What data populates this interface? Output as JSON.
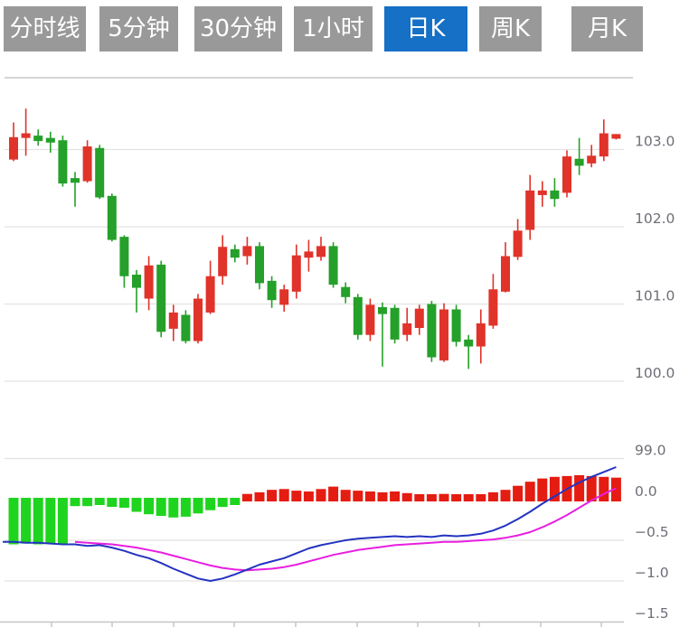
{
  "tabs": {
    "items": [
      {
        "id": "tab-minute-line",
        "label": "分时线",
        "active": false
      },
      {
        "id": "tab-5min",
        "label": "5分钟",
        "active": false
      },
      {
        "id": "tab-30min",
        "label": "30分钟",
        "active": false
      },
      {
        "id": "tab-1hour",
        "label": "1小时",
        "active": false
      },
      {
        "id": "tab-daily-k",
        "label": "日K",
        "active": true
      },
      {
        "id": "tab-weekly-k",
        "label": "周K",
        "active": false
      },
      {
        "id": "tab-monthly-k",
        "label": "月K",
        "active": false
      }
    ],
    "active_bg": "#1570c6",
    "inactive_bg": "#999999"
  },
  "chart_data": {
    "type": "candlestick+macd",
    "title": "",
    "legend_position": "none",
    "grid": true,
    "price_axis": {
      "side": "right",
      "ticks": [
        103.0,
        102.0,
        101.0,
        100.0,
        99.0
      ],
      "labels": [
        "103.0",
        "102.0",
        "101.0",
        "100.0",
        "99.0"
      ],
      "range_shown": [
        99.0,
        103.85
      ]
    },
    "macd_axis": {
      "side": "right",
      "ticks": [
        0.0,
        -0.5,
        -1.0,
        -1.5
      ],
      "labels": [
        "0.0",
        "−0.5",
        "−1.0",
        "−1.5"
      ]
    },
    "candles": [
      {
        "o": 102.87,
        "h": 103.35,
        "l": 102.85,
        "c": 103.16
      },
      {
        "o": 103.15,
        "h": 103.53,
        "l": 102.92,
        "c": 103.21
      },
      {
        "o": 103.18,
        "h": 103.26,
        "l": 103.05,
        "c": 103.11
      },
      {
        "o": 103.15,
        "h": 103.23,
        "l": 102.96,
        "c": 103.09
      },
      {
        "o": 103.12,
        "h": 103.18,
        "l": 102.52,
        "c": 102.56
      },
      {
        "o": 102.63,
        "h": 102.71,
        "l": 102.26,
        "c": 102.57
      },
      {
        "o": 102.59,
        "h": 103.12,
        "l": 102.57,
        "c": 103.04
      },
      {
        "o": 103.02,
        "h": 103.06,
        "l": 102.36,
        "c": 102.38
      },
      {
        "o": 102.4,
        "h": 102.43,
        "l": 101.81,
        "c": 101.83
      },
      {
        "o": 101.87,
        "h": 101.89,
        "l": 101.21,
        "c": 101.36
      },
      {
        "o": 101.38,
        "h": 101.44,
        "l": 100.89,
        "c": 101.21
      },
      {
        "o": 101.07,
        "h": 101.62,
        "l": 100.92,
        "c": 101.5
      },
      {
        "o": 101.51,
        "h": 101.56,
        "l": 100.57,
        "c": 100.64
      },
      {
        "o": 100.68,
        "h": 100.99,
        "l": 100.52,
        "c": 100.89
      },
      {
        "o": 100.86,
        "h": 100.92,
        "l": 100.49,
        "c": 100.52
      },
      {
        "o": 100.52,
        "h": 101.13,
        "l": 100.49,
        "c": 101.07
      },
      {
        "o": 100.89,
        "h": 101.56,
        "l": 100.87,
        "c": 101.36
      },
      {
        "o": 101.36,
        "h": 101.89,
        "l": 101.25,
        "c": 101.74
      },
      {
        "o": 101.71,
        "h": 101.77,
        "l": 101.54,
        "c": 101.6
      },
      {
        "o": 101.62,
        "h": 101.87,
        "l": 101.51,
        "c": 101.75
      },
      {
        "o": 101.75,
        "h": 101.8,
        "l": 101.19,
        "c": 101.27
      },
      {
        "o": 101.3,
        "h": 101.36,
        "l": 100.95,
        "c": 101.05
      },
      {
        "o": 100.99,
        "h": 101.25,
        "l": 100.9,
        "c": 101.19
      },
      {
        "o": 101.16,
        "h": 101.77,
        "l": 101.07,
        "c": 101.63
      },
      {
        "o": 101.6,
        "h": 101.83,
        "l": 101.42,
        "c": 101.68
      },
      {
        "o": 101.61,
        "h": 101.87,
        "l": 101.56,
        "c": 101.75
      },
      {
        "o": 101.75,
        "h": 101.8,
        "l": 101.21,
        "c": 101.25
      },
      {
        "o": 101.22,
        "h": 101.28,
        "l": 101.01,
        "c": 101.09
      },
      {
        "o": 101.09,
        "h": 101.13,
        "l": 100.54,
        "c": 100.6
      },
      {
        "o": 100.6,
        "h": 101.07,
        "l": 100.52,
        "c": 100.99
      },
      {
        "o": 100.96,
        "h": 101.02,
        "l": 100.19,
        "c": 100.87
      },
      {
        "o": 100.95,
        "h": 100.99,
        "l": 100.49,
        "c": 100.54
      },
      {
        "o": 100.6,
        "h": 100.95,
        "l": 100.52,
        "c": 100.75
      },
      {
        "o": 100.69,
        "h": 100.99,
        "l": 100.6,
        "c": 100.94
      },
      {
        "o": 101.0,
        "h": 101.04,
        "l": 100.25,
        "c": 100.31
      },
      {
        "o": 100.27,
        "h": 101.01,
        "l": 100.25,
        "c": 100.93
      },
      {
        "o": 100.93,
        "h": 100.99,
        "l": 100.45,
        "c": 100.51
      },
      {
        "o": 100.54,
        "h": 100.6,
        "l": 100.16,
        "c": 100.45
      },
      {
        "o": 100.45,
        "h": 100.93,
        "l": 100.23,
        "c": 100.75
      },
      {
        "o": 100.72,
        "h": 101.39,
        "l": 100.68,
        "c": 101.19
      },
      {
        "o": 101.16,
        "h": 101.8,
        "l": 101.15,
        "c": 101.62
      },
      {
        "o": 101.61,
        "h": 102.1,
        "l": 101.57,
        "c": 101.95
      },
      {
        "o": 101.96,
        "h": 102.67,
        "l": 101.83,
        "c": 102.47
      },
      {
        "o": 102.41,
        "h": 102.59,
        "l": 102.26,
        "c": 102.47
      },
      {
        "o": 102.47,
        "h": 102.63,
        "l": 102.26,
        "c": 102.36
      },
      {
        "o": 102.44,
        "h": 102.99,
        "l": 102.38,
        "c": 102.91
      },
      {
        "o": 102.88,
        "h": 103.15,
        "l": 102.67,
        "c": 102.79
      },
      {
        "o": 102.82,
        "h": 103.06,
        "l": 102.77,
        "c": 102.92
      },
      {
        "o": 102.91,
        "h": 103.39,
        "l": 102.85,
        "c": 103.21
      },
      {
        "o": 103.14,
        "h": 103.2,
        "l": 103.13,
        "c": 103.2
      }
    ],
    "macd": {
      "histogram": [
        -0.55,
        -0.54,
        -0.55,
        -0.54,
        -0.55,
        -0.08,
        -0.08,
        -0.06,
        -0.09,
        -0.1,
        -0.15,
        -0.18,
        -0.2,
        -0.22,
        -0.21,
        -0.17,
        -0.13,
        -0.09,
        -0.06,
        0.07,
        0.09,
        0.12,
        0.13,
        0.11,
        0.1,
        0.13,
        0.16,
        0.12,
        0.11,
        0.1,
        0.09,
        0.1,
        0.08,
        0.06,
        0.05,
        0.07,
        0.04,
        0.05,
        0.06,
        0.09,
        0.12,
        0.17,
        0.22,
        0.26,
        0.28,
        0.29,
        0.3,
        0.29,
        0.28,
        0.27
      ],
      "dif": [
        -0.52,
        -0.53,
        -0.53,
        -0.54,
        -0.55,
        -0.55,
        -0.57,
        -0.56,
        -0.59,
        -0.63,
        -0.68,
        -0.72,
        -0.78,
        -0.85,
        -0.91,
        -0.97,
        -1.0,
        -0.97,
        -0.92,
        -0.86,
        -0.8,
        -0.76,
        -0.72,
        -0.66,
        -0.6,
        -0.56,
        -0.53,
        -0.5,
        -0.48,
        -0.47,
        -0.46,
        -0.45,
        -0.46,
        -0.45,
        -0.46,
        -0.44,
        -0.45,
        -0.44,
        -0.42,
        -0.38,
        -0.32,
        -0.24,
        -0.15,
        -0.05,
        0.04,
        0.13,
        0.21,
        0.28,
        0.34,
        0.4
      ],
      "dea": {
        "start_index": 5,
        "values": [
          -0.52,
          -0.53,
          -0.54,
          -0.55,
          -0.57,
          -0.59,
          -0.62,
          -0.65,
          -0.69,
          -0.73,
          -0.77,
          -0.81,
          -0.84,
          -0.86,
          -0.87,
          -0.86,
          -0.85,
          -0.83,
          -0.8,
          -0.76,
          -0.72,
          -0.68,
          -0.65,
          -0.62,
          -0.6,
          -0.58,
          -0.56,
          -0.55,
          -0.54,
          -0.53,
          -0.52,
          -0.52,
          -0.51,
          -0.5,
          -0.49,
          -0.47,
          -0.44,
          -0.4,
          -0.34,
          -0.27,
          -0.19,
          -0.1,
          -0.01,
          0.07,
          0.14
        ]
      }
    },
    "colors": {
      "up": "#e0332a",
      "down": "#25a02a",
      "hist_up": "#e51c12",
      "hist_down": "#1fd41f",
      "dif_line": "#2433c0",
      "dea_line": "#e81ee0",
      "grid": "#e2e2e2",
      "axis": "#c6c6c6",
      "label": "#6e6e78"
    }
  }
}
